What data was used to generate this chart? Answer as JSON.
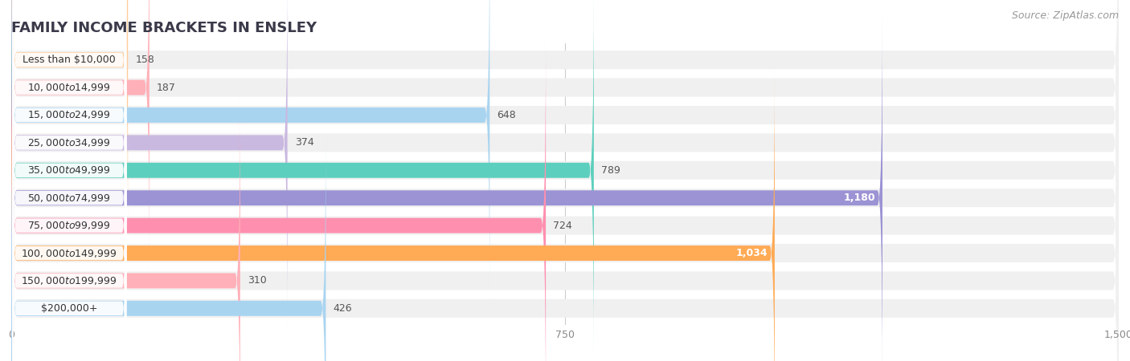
{
  "title": "FAMILY INCOME BRACKETS IN ENSLEY",
  "source": "Source: ZipAtlas.com",
  "categories": [
    "Less than $10,000",
    "$10,000 to $14,999",
    "$15,000 to $24,999",
    "$25,000 to $34,999",
    "$35,000 to $49,999",
    "$50,000 to $74,999",
    "$75,000 to $99,999",
    "$100,000 to $149,999",
    "$150,000 to $199,999",
    "$200,000+"
  ],
  "values": [
    158,
    187,
    648,
    374,
    789,
    1180,
    724,
    1034,
    310,
    426
  ],
  "bar_colors": [
    "#FFCC99",
    "#FFB0B8",
    "#A8D4F0",
    "#C9B8E0",
    "#5DCFBE",
    "#9B93D4",
    "#FF8FAF",
    "#FFAA55",
    "#FFB0B8",
    "#A8D4F0"
  ],
  "xlim": [
    0,
    1500
  ],
  "xticks": [
    0,
    750,
    1500
  ],
  "bg_color": "#ffffff",
  "row_bg_color": "#f0f0f0",
  "label_box_color": "#ffffff",
  "title_color": "#3a3a4a",
  "source_color": "#999999",
  "value_color_outside": "#555555",
  "value_color_inside": "#ffffff",
  "title_fontsize": 13,
  "label_fontsize": 9,
  "value_fontsize": 9,
  "source_fontsize": 9
}
